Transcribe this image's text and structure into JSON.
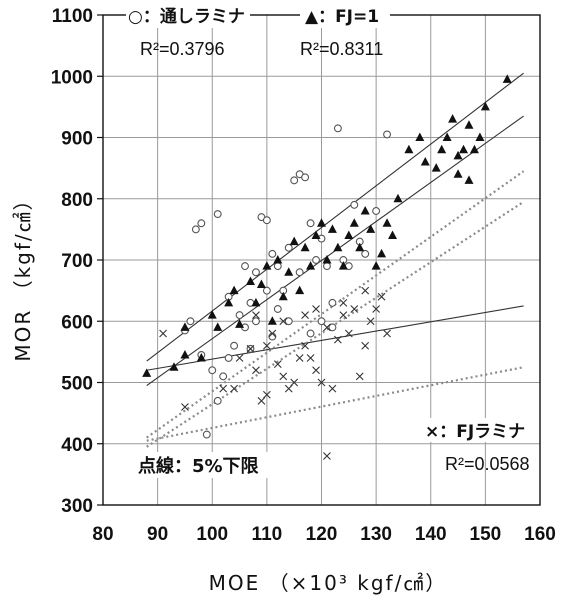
{
  "chart_data": {
    "type": "scatter",
    "xlabel": "MOE （×10³ kgf/㎠）",
    "ylabel": "MOR （kgf/㎠）",
    "xlim": [
      80,
      160
    ],
    "ylim": [
      300,
      1100
    ],
    "x_ticks": [
      "80",
      "90",
      "100",
      "110",
      "120",
      "130",
      "140",
      "150",
      "160"
    ],
    "y_ticks": [
      "300",
      "400",
      "500",
      "600",
      "700",
      "800",
      "900",
      "1000",
      "1100"
    ],
    "grid": true,
    "note": "点線：5%下限",
    "series": [
      {
        "name": "○：通しラミナ",
        "marker": "circle-open",
        "r2": "R²=0.3796",
        "points": [
          [
            97,
            750
          ],
          [
            98,
            760
          ],
          [
            101,
            775
          ],
          [
            103,
            640
          ],
          [
            95,
            585
          ],
          [
            98,
            545
          ],
          [
            100,
            520
          ],
          [
            102,
            510
          ],
          [
            99,
            415
          ],
          [
            101,
            470
          ],
          [
            105,
            610
          ],
          [
            106,
            690
          ],
          [
            107,
            630
          ],
          [
            108,
            680
          ],
          [
            109,
            770
          ],
          [
            110,
            765
          ],
          [
            111,
            710
          ],
          [
            112,
            690
          ],
          [
            113,
            650
          ],
          [
            114,
            720
          ],
          [
            115,
            830
          ],
          [
            116,
            840
          ],
          [
            117,
            835
          ],
          [
            118,
            760
          ],
          [
            119,
            700
          ],
          [
            120,
            735
          ],
          [
            121,
            690
          ],
          [
            122,
            630
          ],
          [
            123,
            915
          ],
          [
            124,
            700
          ],
          [
            125,
            690
          ],
          [
            126,
            790
          ],
          [
            127,
            730
          ],
          [
            128,
            710
          ],
          [
            130,
            780
          ],
          [
            132,
            905
          ],
          [
            104,
            560
          ],
          [
            106,
            590
          ],
          [
            108,
            600
          ],
          [
            110,
            650
          ],
          [
            112,
            620
          ],
          [
            114,
            600
          ],
          [
            116,
            680
          ],
          [
            118,
            580
          ],
          [
            120,
            600
          ],
          [
            122,
            590
          ],
          [
            96,
            600
          ],
          [
            103,
            540
          ],
          [
            107,
            555
          ],
          [
            111,
            575
          ]
        ]
      },
      {
        "name": "▲：FJ=1",
        "marker": "triangle-filled",
        "r2": "R²=0.8311",
        "points": [
          [
            88,
            515
          ],
          [
            93,
            525
          ],
          [
            95,
            545
          ],
          [
            95,
            590
          ],
          [
            98,
            540
          ],
          [
            100,
            610
          ],
          [
            101,
            590
          ],
          [
            103,
            630
          ],
          [
            104,
            650
          ],
          [
            105,
            595
          ],
          [
            107,
            665
          ],
          [
            108,
            630
          ],
          [
            109,
            660
          ],
          [
            110,
            690
          ],
          [
            111,
            600
          ],
          [
            112,
            700
          ],
          [
            113,
            640
          ],
          [
            114,
            680
          ],
          [
            115,
            730
          ],
          [
            116,
            650
          ],
          [
            117,
            720
          ],
          [
            118,
            690
          ],
          [
            119,
            740
          ],
          [
            120,
            760
          ],
          [
            121,
            700
          ],
          [
            122,
            750
          ],
          [
            123,
            720
          ],
          [
            124,
            690
          ],
          [
            125,
            740
          ],
          [
            126,
            760
          ],
          [
            127,
            720
          ],
          [
            128,
            780
          ],
          [
            129,
            750
          ],
          [
            130,
            690
          ],
          [
            131,
            710
          ],
          [
            132,
            760
          ],
          [
            133,
            740
          ],
          [
            134,
            800
          ],
          [
            138,
            900
          ],
          [
            141,
            850
          ],
          [
            142,
            880
          ],
          [
            143,
            900
          ],
          [
            144,
            930
          ],
          [
            145,
            870
          ],
          [
            146,
            880
          ],
          [
            147,
            830
          ],
          [
            148,
            880
          ],
          [
            149,
            900
          ],
          [
            150,
            950
          ],
          [
            154,
            995
          ],
          [
            136,
            880
          ],
          [
            139,
            860
          ],
          [
            145,
            840
          ],
          [
            147,
            920
          ]
        ]
      },
      {
        "name": "×：FJラミナ",
        "marker": "cross",
        "r2": "R²=0.0568",
        "points": [
          [
            91,
            580
          ],
          [
            95,
            460
          ],
          [
            102,
            490
          ],
          [
            104,
            490
          ],
          [
            105,
            540
          ],
          [
            107,
            555
          ],
          [
            108,
            520
          ],
          [
            109,
            470
          ],
          [
            110,
            480
          ],
          [
            111,
            580
          ],
          [
            112,
            530
          ],
          [
            113,
            510
          ],
          [
            114,
            490
          ],
          [
            115,
            500
          ],
          [
            116,
            540
          ],
          [
            117,
            560
          ],
          [
            118,
            540
          ],
          [
            119,
            520
          ],
          [
            120,
            500
          ],
          [
            121,
            380
          ],
          [
            122,
            490
          ],
          [
            123,
            570
          ],
          [
            124,
            610
          ],
          [
            125,
            580
          ],
          [
            126,
            620
          ],
          [
            127,
            510
          ],
          [
            128,
            560
          ],
          [
            129,
            600
          ],
          [
            130,
            620
          ],
          [
            131,
            640
          ],
          [
            132,
            580
          ],
          [
            108,
            610
          ],
          [
            110,
            560
          ],
          [
            113,
            600
          ],
          [
            117,
            610
          ],
          [
            121,
            590
          ],
          [
            124,
            630
          ],
          [
            128,
            650
          ],
          [
            119,
            620
          ]
        ]
      }
    ],
    "regression_lines": [
      {
        "series": "○：通しラミナ",
        "style": "solid",
        "from": [
          88,
          535
        ],
        "to": [
          157,
          1005
        ]
      },
      {
        "series": "▲：FJ=1",
        "style": "solid",
        "from": [
          88,
          495
        ],
        "to": [
          157,
          935
        ]
      },
      {
        "series": "×：FJラミナ",
        "style": "solid",
        "from": [
          88,
          520
        ],
        "to": [
          157,
          625
        ]
      },
      {
        "series": "○：通しラミナ",
        "style": "dotted",
        "from": [
          88,
          410
        ],
        "to": [
          157,
          845
        ]
      },
      {
        "series": "▲：FJ=1",
        "style": "dotted",
        "from": [
          88,
          395
        ],
        "to": [
          157,
          795
        ]
      },
      {
        "series": "×：FJラミナ",
        "style": "dotted",
        "from": [
          88,
          405
        ],
        "to": [
          157,
          525
        ]
      }
    ]
  }
}
